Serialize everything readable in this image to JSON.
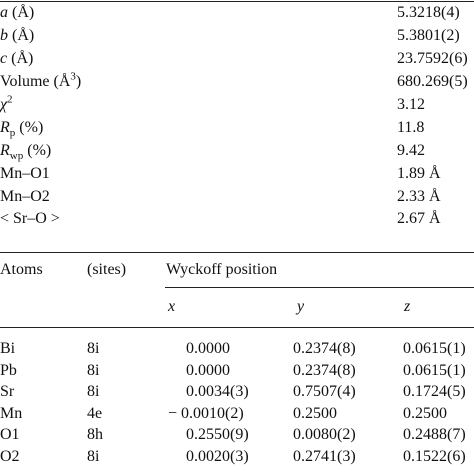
{
  "params": {
    "rows": [
      {
        "label": [
          "a",
          " (Å)"
        ],
        "value": "5.3218(4)"
      },
      {
        "label": [
          "b",
          " (Å)"
        ],
        "value": "5.3801(2)"
      },
      {
        "label": [
          "c",
          " (Å)"
        ],
        "value": "23.7592(6)"
      },
      {
        "label": [
          "Volume (Å",
          "3",
          ")"
        ],
        "value": "680.269(5)"
      },
      {
        "label": [
          "χ",
          "2"
        ],
        "value": "3.12"
      },
      {
        "label": [
          "R",
          "p",
          " (%)"
        ],
        "value": "11.8"
      },
      {
        "label": [
          "R",
          "wp",
          " (%)"
        ],
        "value": "9.42"
      },
      {
        "label": [
          "Mn–O1"
        ],
        "value": "1.89 Å"
      },
      {
        "label": [
          "Mn–O2"
        ],
        "value": "2.33 Å"
      },
      {
        "label": [
          "< Sr–O >"
        ],
        "value": "2.67 Å"
      }
    ]
  },
  "atoms": {
    "header": {
      "atoms": "Atoms",
      "sites": "(sites)",
      "wyckoff": "Wyckoff position",
      "x": "x",
      "y": "y",
      "z": "z"
    },
    "rows": [
      [
        "Bi",
        "8i",
        "0.0000",
        "0.2374(8)",
        "0.0615(1)"
      ],
      [
        "Pb",
        "8i",
        "0.0000",
        "0.2374(8)",
        "0.0615(1)"
      ],
      [
        "Sr",
        "8i",
        "0.0034(3)",
        "0.7507(4)",
        "0.1724(5)"
      ],
      [
        "Mn",
        "4e",
        "− 0.0010(2)",
        "0.2500",
        "0.2500"
      ],
      [
        "O1",
        "8h",
        "0.2550(9)",
        "0.0080(2)",
        "0.2488(7)"
      ],
      [
        "O2",
        "8i",
        "0.0020(3)",
        "0.2741(3)",
        "0.1522(6)"
      ]
    ]
  }
}
